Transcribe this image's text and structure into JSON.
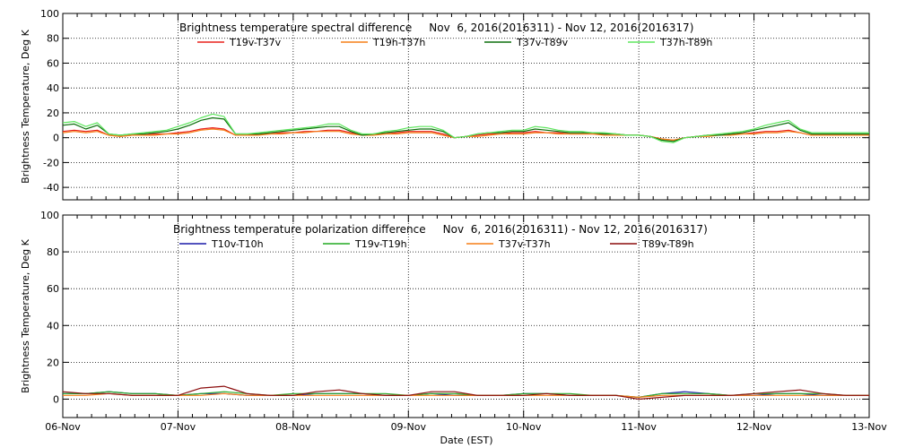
{
  "chart_data": [
    {
      "type": "line",
      "title": "Brightness temperature spectral difference     Nov  6, 2016(2016311) - Nov 12, 2016(2016317)",
      "ylabel": "Brightness Temperature, Deg K",
      "xlabel": "",
      "ylim": [
        -50,
        100
      ],
      "yticks": [
        -40,
        -20,
        0,
        20,
        40,
        60,
        80,
        100
      ],
      "xlim": [
        0,
        7
      ],
      "x_tick_labels": [],
      "grid": true,
      "legend": "top",
      "x": [
        0,
        0.1,
        0.2,
        0.3,
        0.4,
        0.5,
        0.6,
        0.7,
        0.8,
        0.9,
        1.0,
        1.1,
        1.2,
        1.3,
        1.4,
        1.5,
        1.6,
        1.7,
        1.8,
        1.9,
        2.0,
        2.1,
        2.2,
        2.3,
        2.4,
        2.5,
        2.6,
        2.7,
        2.8,
        2.9,
        3.0,
        3.1,
        3.2,
        3.3,
        3.4,
        3.5,
        3.6,
        3.7,
        3.8,
        3.9,
        4.0,
        4.1,
        4.2,
        4.3,
        4.4,
        4.5,
        4.6,
        4.7,
        4.8,
        4.9,
        5.0,
        5.1,
        5.2,
        5.3,
        5.4,
        5.5,
        5.6,
        5.7,
        5.8,
        5.9,
        6.0,
        6.1,
        6.2,
        6.3,
        6.4,
        6.5,
        6.6,
        6.7,
        6.8,
        6.9,
        7.0
      ],
      "series": [
        {
          "name": "T19v-T37v",
          "color": "#e8201a",
          "values": [
            5,
            6,
            5,
            6,
            2,
            1,
            2,
            2,
            3,
            3,
            4,
            5,
            7,
            8,
            7,
            2,
            2,
            3,
            3,
            4,
            4,
            5,
            5,
            6,
            6,
            4,
            2,
            3,
            3,
            4,
            5,
            5,
            5,
            3,
            0,
            1,
            2,
            3,
            3,
            4,
            4,
            5,
            4,
            4,
            3,
            3,
            3,
            3,
            3,
            2,
            2,
            1,
            -1,
            -2,
            0,
            1,
            2,
            2,
            3,
            3,
            4,
            5,
            5,
            6,
            4,
            2,
            2,
            2,
            2,
            2,
            2
          ]
        },
        {
          "name": "T19h-T37h",
          "color": "#f57f17",
          "values": [
            4,
            5,
            4,
            5,
            2,
            1,
            2,
            2,
            2,
            3,
            3,
            4,
            6,
            7,
            6,
            2,
            2,
            2,
            3,
            3,
            4,
            4,
            5,
            5,
            5,
            3,
            2,
            2,
            3,
            3,
            4,
            4,
            4,
            2,
            0,
            1,
            1,
            2,
            3,
            3,
            3,
            4,
            4,
            3,
            3,
            3,
            3,
            2,
            2,
            2,
            2,
            1,
            -1,
            -2,
            0,
            1,
            1,
            2,
            2,
            3,
            3,
            4,
            4,
            5,
            4,
            2,
            2,
            2,
            2,
            2,
            2
          ]
        },
        {
          "name": "T37v-T89v",
          "color": "#0b6e0b",
          "values": [
            10,
            11,
            7,
            10,
            3,
            2,
            3,
            3,
            4,
            5,
            7,
            10,
            14,
            16,
            15,
            3,
            3,
            3,
            4,
            5,
            6,
            7,
            8,
            9,
            9,
            5,
            2,
            3,
            4,
            5,
            6,
            7,
            7,
            5,
            0,
            1,
            3,
            4,
            4,
            5,
            5,
            7,
            6,
            5,
            4,
            4,
            4,
            3,
            3,
            2,
            2,
            1,
            -2,
            -3,
            0,
            1,
            2,
            2,
            3,
            4,
            6,
            8,
            10,
            12,
            6,
            3,
            3,
            3,
            3,
            3,
            3
          ]
        },
        {
          "name": "T37h-T89h",
          "color": "#5ee65e",
          "values": [
            12,
            13,
            9,
            12,
            3,
            2,
            3,
            4,
            5,
            6,
            9,
            12,
            16,
            19,
            17,
            3,
            3,
            4,
            5,
            6,
            7,
            8,
            9,
            11,
            11,
            6,
            3,
            3,
            5,
            6,
            8,
            9,
            9,
            6,
            0,
            1,
            3,
            4,
            5,
            6,
            6,
            9,
            8,
            6,
            5,
            5,
            4,
            4,
            3,
            2,
            2,
            1,
            -3,
            -4,
            0,
            1,
            2,
            3,
            4,
            5,
            7,
            10,
            12,
            14,
            7,
            4,
            4,
            4,
            4,
            4,
            4
          ]
        }
      ]
    },
    {
      "type": "line",
      "title": "Brightness temperature polarization difference     Nov  6, 2016(2016311) - Nov 12, 2016(2016317)",
      "ylabel": "Brightness Temperature, Deg K",
      "xlabel": "Date (EST)",
      "ylim": [
        -10,
        100
      ],
      "yticks": [
        0,
        20,
        40,
        60,
        80,
        100
      ],
      "xlim": [
        0,
        7
      ],
      "x_tick_labels": [
        "06-Nov",
        "07-Nov",
        "08-Nov",
        "09-Nov",
        "10-Nov",
        "11-Nov",
        "12-Nov",
        "13-Nov"
      ],
      "grid": true,
      "legend": "top",
      "x": [
        0,
        0.2,
        0.4,
        0.6,
        0.8,
        1.0,
        1.2,
        1.4,
        1.6,
        1.8,
        2.0,
        2.2,
        2.4,
        2.6,
        2.8,
        3.0,
        3.2,
        3.4,
        3.6,
        3.8,
        4.0,
        4.2,
        4.4,
        4.6,
        4.8,
        5.0,
        5.2,
        5.4,
        5.6,
        5.8,
        6.0,
        6.2,
        6.4,
        6.6,
        6.8,
        7.0
      ],
      "series": [
        {
          "name": "T10v-T10h",
          "color": "#1a1aa8",
          "values": [
            3,
            3,
            4,
            3,
            3,
            2,
            3,
            3,
            2,
            2,
            2,
            3,
            3,
            3,
            2,
            2,
            3,
            2,
            2,
            2,
            3,
            3,
            2,
            2,
            2,
            1,
            3,
            4,
            3,
            2,
            2,
            3,
            3,
            2,
            2,
            2
          ]
        },
        {
          "name": "T19v-T19h",
          "color": "#22aa22",
          "values": [
            3,
            3,
            4,
            3,
            3,
            2,
            3,
            4,
            3,
            2,
            3,
            3,
            3,
            3,
            3,
            2,
            3,
            3,
            2,
            2,
            3,
            3,
            3,
            2,
            2,
            1,
            3,
            3,
            3,
            2,
            3,
            3,
            3,
            3,
            2,
            2
          ]
        },
        {
          "name": "T37v-T37h",
          "color": "#f57f17",
          "values": [
            2,
            2,
            3,
            2,
            2,
            2,
            2,
            3,
            2,
            2,
            2,
            2,
            2,
            2,
            2,
            2,
            2,
            2,
            2,
            2,
            2,
            2,
            2,
            2,
            2,
            1,
            2,
            2,
            2,
            2,
            2,
            2,
            2,
            2,
            2,
            2
          ]
        },
        {
          "name": "T89v-T89h",
          "color": "#8b0d0d",
          "values": [
            4,
            3,
            3,
            2,
            2,
            2,
            6,
            7,
            3,
            2,
            2,
            4,
            5,
            3,
            2,
            2,
            4,
            4,
            2,
            2,
            2,
            3,
            2,
            2,
            2,
            0,
            1,
            2,
            2,
            2,
            3,
            4,
            5,
            3,
            2,
            2
          ]
        }
      ]
    }
  ]
}
